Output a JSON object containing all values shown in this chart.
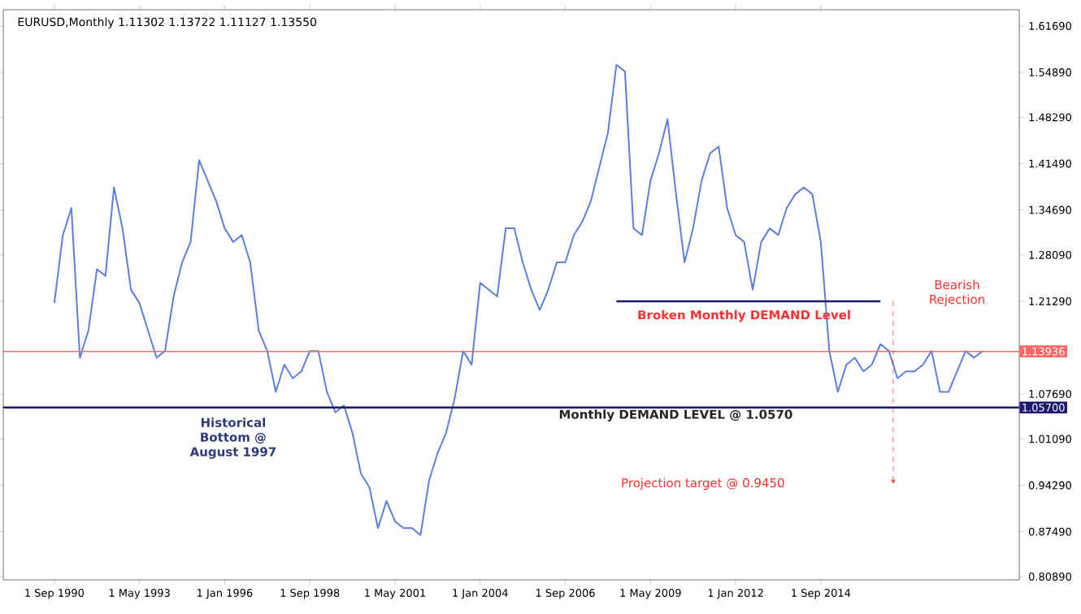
{
  "chart_data": {
    "type": "line",
    "title": "EURUSD,Monthly  1.11302 1.13722 1.11127 1.13550",
    "categories": [
      "1 Sep 1990",
      null,
      null,
      null,
      null,
      null,
      null,
      null,
      null,
      null,
      "1 May 1993",
      null,
      null,
      null,
      null,
      null,
      null,
      null,
      null,
      null,
      "1 Jan 1996",
      null,
      null,
      null,
      null,
      null,
      null,
      null,
      null,
      null,
      "1 Sep 1998",
      null,
      null,
      null,
      null,
      null,
      null,
      null,
      null,
      null,
      "1 May 2001",
      null,
      null,
      null,
      null,
      null,
      null,
      null,
      null,
      null,
      "1 Jan 2004",
      null,
      null,
      null,
      null,
      null,
      null,
      null,
      null,
      null,
      "1 Sep 2006",
      null,
      null,
      null,
      null,
      null,
      null,
      null,
      null,
      null,
      "1 May 2009",
      null,
      null,
      null,
      null,
      null,
      null,
      null,
      null,
      null,
      "1 Jan 2012",
      null,
      null,
      null,
      null,
      null,
      null,
      null,
      null,
      null,
      "1 Sep 2014",
      null,
      null,
      null,
      null,
      null,
      null,
      null,
      null,
      null,
      null,
      null,
      null,
      null,
      null,
      null,
      null,
      null,
      null,
      null
    ],
    "series": [
      {
        "color": "#5b7fe0",
        "values": [
          1.21,
          1.31,
          1.35,
          1.13,
          1.17,
          1.26,
          1.25,
          1.38,
          1.32,
          1.23,
          1.21,
          1.17,
          1.13,
          1.14,
          1.22,
          1.27,
          1.3,
          1.42,
          1.39,
          1.36,
          1.32,
          1.3,
          1.31,
          1.27,
          1.17,
          1.14,
          1.08,
          1.12,
          1.1,
          1.11,
          1.14,
          1.14,
          1.08,
          1.05,
          1.06,
          1.02,
          0.96,
          0.94,
          0.88,
          0.92,
          0.89,
          0.88,
          0.88,
          0.87,
          0.95,
          0.99,
          1.02,
          1.07,
          1.14,
          1.12,
          1.24,
          1.23,
          1.22,
          1.32,
          1.32,
          1.27,
          1.23,
          1.2,
          1.23,
          1.27,
          1.27,
          1.31,
          1.33,
          1.36,
          1.41,
          1.46,
          1.56,
          1.55,
          1.32,
          1.31,
          1.39,
          1.43,
          1.48,
          1.37,
          1.27,
          1.32,
          1.39,
          1.43,
          1.44,
          1.35,
          1.31,
          1.3,
          1.23,
          1.3,
          1.32,
          1.31,
          1.35,
          1.37,
          1.38,
          1.37,
          1.3,
          1.14,
          1.08,
          1.12,
          1.13,
          1.11,
          1.12,
          1.15,
          1.14,
          1.1,
          1.11,
          1.11,
          1.12,
          1.14,
          1.08,
          1.08,
          1.11,
          1.14,
          1.13,
          1.14
        ]
      },
      {
        "color": "#1a1a6e",
        "values": [
          null,
          null,
          null,
          null,
          null,
          null,
          null,
          null,
          null,
          null,
          null,
          null,
          null,
          null,
          null,
          null,
          null,
          null,
          null,
          null,
          null,
          null,
          null,
          null,
          null,
          null,
          null,
          null,
          null,
          null,
          null,
          null,
          null,
          null,
          null,
          null,
          null,
          null,
          null,
          null,
          null,
          null,
          null,
          null,
          null,
          null,
          null,
          null,
          null,
          null,
          null,
          null,
          null,
          null,
          null,
          null,
          null,
          null,
          null,
          null,
          null,
          null,
          null,
          null,
          null,
          null,
          1.2129,
          1.2129,
          1.2129,
          1.2129,
          1.2129,
          1.2129,
          1.2129,
          1.2129,
          1.2129,
          1.2129,
          1.2129,
          1.2129,
          1.2129,
          1.2129,
          1.2129,
          1.2129,
          1.2129,
          1.2129,
          1.2129,
          1.2129,
          1.2129,
          1.2129,
          1.2129,
          1.2129,
          1.2129,
          1.2129,
          1.2129,
          1.2129,
          1.2129,
          1.2129,
          1.2129,
          1.2129,
          null,
          null,
          null,
          null,
          null,
          null,
          null,
          null,
          null,
          null,
          null,
          null
        ]
      }
    ],
    "ylim": [
      0.8041,
      1.6407
    ],
    "yticks": [
      {
        "value": 0.8089,
        "label": "0.80890"
      },
      {
        "value": 0.8749,
        "label": "0.87490"
      },
      {
        "value": 0.9429,
        "label": "0.94290"
      },
      {
        "value": 1.0109,
        "label": "1.01090"
      },
      {
        "value": 1.0769,
        "label": "1.07690"
      },
      {
        "value": 1.2129,
        "label": "1.21290"
      },
      {
        "value": 1.2809,
        "label": "1.28090"
      },
      {
        "value": 1.3469,
        "label": "1.34690"
      },
      {
        "value": 1.4149,
        "label": "1.41490"
      },
      {
        "value": 1.4829,
        "label": "1.48290"
      },
      {
        "value": 1.5489,
        "label": "1.54890"
      },
      {
        "value": 1.6169,
        "label": "1.61690"
      }
    ],
    "ref_lines": [
      {
        "axis": "y",
        "value": 1.13936,
        "label": "1.13936",
        "color": "#ff6666"
      },
      {
        "axis": "y",
        "value": 1.057,
        "label": "1.05700",
        "color": "#1a1a6e"
      }
    ],
    "annotations": [
      "Broken Monthly DEMAND Level",
      {
        "text": "Monthly DEMAND LEVEL @ 1.0570",
        "y": 1.057
      },
      "Historical Bottom @ August 1997",
      "Projection target @ 0.9450",
      "Bearish Rejection"
    ],
    "grid": false,
    "marker": "none",
    "line_style": "solid"
  }
}
